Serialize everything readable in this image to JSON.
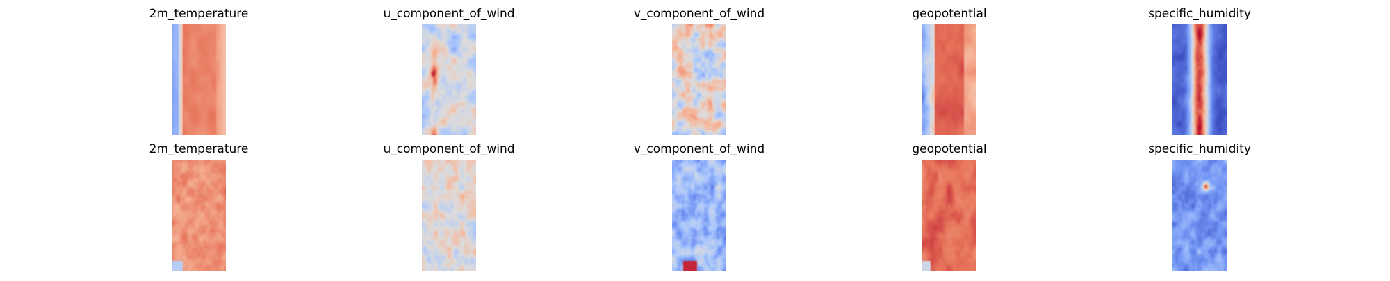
{
  "chart_data": {
    "type": "heatmap",
    "colormap": "coolwarm",
    "colormap_stops": [
      "#3b4cc0",
      "#6f92f3",
      "#aac7fd",
      "#dddcdc",
      "#f7b89c",
      "#e7745b",
      "#b40426"
    ],
    "axes_visible": false,
    "rows": [
      {
        "panels": [
          {
            "title": "2m_temperature",
            "pattern": "temp_top"
          },
          {
            "title": "u_component_of_wind",
            "pattern": "uwind_top"
          },
          {
            "title": "v_component_of_wind",
            "pattern": "vwind_top"
          },
          {
            "title": "geopotential",
            "pattern": "geo_top"
          },
          {
            "title": "specific_humidity",
            "pattern": "hum_top"
          }
        ]
      },
      {
        "panels": [
          {
            "title": "2m_temperature",
            "pattern": "temp_bottom"
          },
          {
            "title": "u_component_of_wind",
            "pattern": "uwind_bottom"
          },
          {
            "title": "v_component_of_wind",
            "pattern": "vwind_bottom"
          },
          {
            "title": "geopotential",
            "pattern": "geo_bottom"
          },
          {
            "title": "specific_humidity",
            "pattern": "hum_bottom"
          }
        ]
      }
    ]
  }
}
